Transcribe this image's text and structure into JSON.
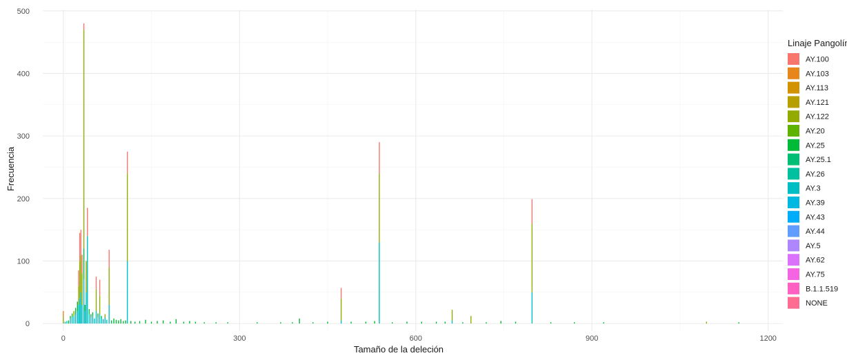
{
  "chart_data": {
    "type": "bar",
    "stacked": true,
    "xlabel": "Tamaño de la deleción",
    "ylabel": "Frecuencia",
    "xlim": [
      -35,
      1225
    ],
    "ylim": [
      -12,
      502
    ],
    "x_ticks": [
      0,
      300,
      600,
      900,
      1200
    ],
    "y_ticks": [
      0,
      100,
      200,
      300,
      400,
      500
    ],
    "grid": true,
    "legend_position": "right",
    "legend": {
      "title": "Linaje Pangolín",
      "entries": [
        {
          "name": "AY.100",
          "color": "#F8766D"
        },
        {
          "name": "AY.103",
          "color": "#E7861B"
        },
        {
          "name": "AY.113",
          "color": "#D39200"
        },
        {
          "name": "AY.121",
          "color": "#B79F00"
        },
        {
          "name": "AY.122",
          "color": "#93AA00"
        },
        {
          "name": "AY.20",
          "color": "#5EB300"
        },
        {
          "name": "AY.25",
          "color": "#00BA38"
        },
        {
          "name": "AY.25.1",
          "color": "#00BF74"
        },
        {
          "name": "AY.26",
          "color": "#00C19F"
        },
        {
          "name": "AY.3",
          "color": "#00BFC4"
        },
        {
          "name": "AY.39",
          "color": "#00B9E3"
        },
        {
          "name": "AY.43",
          "color": "#00ADFA"
        },
        {
          "name": "AY.44",
          "color": "#619CFF"
        },
        {
          "name": "AY.5",
          "color": "#AE87FF"
        },
        {
          "name": "AY.62",
          "color": "#DB72FB"
        },
        {
          "name": "AY.75",
          "color": "#F564E3"
        },
        {
          "name": "B.1.1.519",
          "color": "#FF61C3"
        },
        {
          "name": "NONE",
          "color": "#FF6C91"
        }
      ]
    },
    "bars": [
      {
        "x": 0,
        "segments": [
          {
            "lineage": "AY.122",
            "value": 10
          },
          {
            "lineage": "AY.103",
            "value": 10
          }
        ]
      },
      {
        "x": 3,
        "segments": [
          {
            "lineage": "AY.3",
            "value": 3
          }
        ]
      },
      {
        "x": 6,
        "segments": [
          {
            "lineage": "AY.3",
            "value": 4
          }
        ]
      },
      {
        "x": 9,
        "segments": [
          {
            "lineage": "AY.25",
            "value": 5
          }
        ]
      },
      {
        "x": 12,
        "segments": [
          {
            "lineage": "AY.3",
            "value": 8
          },
          {
            "lineage": "AY.25",
            "value": 4
          }
        ]
      },
      {
        "x": 15,
        "segments": [
          {
            "lineage": "AY.3",
            "value": 10
          },
          {
            "lineage": "AY.25",
            "value": 6
          }
        ]
      },
      {
        "x": 18,
        "segments": [
          {
            "lineage": "AY.3",
            "value": 12
          },
          {
            "lineage": "AY.122",
            "value": 8
          }
        ]
      },
      {
        "x": 21,
        "segments": [
          {
            "lineage": "AY.3",
            "value": 15
          },
          {
            "lineage": "AY.25",
            "value": 10
          }
        ]
      },
      {
        "x": 24,
        "segments": [
          {
            "lineage": "AY.3",
            "value": 20
          },
          {
            "lineage": "AY.25",
            "value": 15
          }
        ]
      },
      {
        "x": 26,
        "segments": [
          {
            "lineage": "AY.3",
            "value": 30
          },
          {
            "lineage": "AY.122",
            "value": 30
          },
          {
            "lineage": "AY.100",
            "value": 25
          }
        ]
      },
      {
        "x": 28,
        "segments": [
          {
            "lineage": "AY.3",
            "value": 40
          },
          {
            "lineage": "AY.122",
            "value": 60
          },
          {
            "lineage": "AY.100",
            "value": 45
          }
        ]
      },
      {
        "x": 30,
        "segments": [
          {
            "lineage": "AY.3",
            "value": 50
          },
          {
            "lineage": "AY.122",
            "value": 60
          },
          {
            "lineage": "AY.100",
            "value": 40
          }
        ]
      },
      {
        "x": 32,
        "segments": [
          {
            "lineage": "AY.3",
            "value": 30
          },
          {
            "lineage": "AY.122",
            "value": 50
          },
          {
            "lineage": "AY.100",
            "value": 30
          }
        ]
      },
      {
        "x": 35,
        "segments": [
          {
            "lineage": "AY.3",
            "value": 70
          },
          {
            "lineage": "AY.25",
            "value": 50
          },
          {
            "lineage": "AY.122",
            "value": 350
          },
          {
            "lineage": "AY.100",
            "value": 10
          }
        ]
      },
      {
        "x": 37,
        "segments": [
          {
            "lineage": "AY.3",
            "value": 20
          },
          {
            "lineage": "AY.25",
            "value": 10
          }
        ]
      },
      {
        "x": 39,
        "segments": [
          {
            "lineage": "AY.3",
            "value": 50
          },
          {
            "lineage": "AY.122",
            "value": 50
          }
        ]
      },
      {
        "x": 41,
        "segments": [
          {
            "lineage": "AY.3",
            "value": 140
          },
          {
            "lineage": "AY.100",
            "value": 45
          }
        ]
      },
      {
        "x": 44,
        "segments": [
          {
            "lineage": "AY.3",
            "value": 15
          },
          {
            "lineage": "AY.25",
            "value": 8
          }
        ]
      },
      {
        "x": 47,
        "segments": [
          {
            "lineage": "AY.3",
            "value": 10
          },
          {
            "lineage": "AY.25",
            "value": 5
          }
        ]
      },
      {
        "x": 50,
        "segments": [
          {
            "lineage": "AY.3",
            "value": 12
          },
          {
            "lineage": "AY.25",
            "value": 6
          }
        ]
      },
      {
        "x": 53,
        "segments": [
          {
            "lineage": "AY.3",
            "value": 8
          }
        ]
      },
      {
        "x": 56,
        "segments": [
          {
            "lineage": "AY.3",
            "value": 20
          },
          {
            "lineage": "AY.122",
            "value": 35
          },
          {
            "lineage": "AY.100",
            "value": 20
          }
        ]
      },
      {
        "x": 59,
        "segments": [
          {
            "lineage": "AY.3",
            "value": 10
          },
          {
            "lineage": "AY.25",
            "value": 6
          }
        ]
      },
      {
        "x": 62,
        "segments": [
          {
            "lineage": "AY.3",
            "value": 15
          },
          {
            "lineage": "AY.122",
            "value": 30
          },
          {
            "lineage": "AY.100",
            "value": 25
          }
        ]
      },
      {
        "x": 65,
        "segments": [
          {
            "lineage": "AY.3",
            "value": 8
          },
          {
            "lineage": "AY.25",
            "value": 4
          }
        ]
      },
      {
        "x": 68,
        "segments": [
          {
            "lineage": "AY.3",
            "value": 7
          }
        ]
      },
      {
        "x": 71,
        "segments": [
          {
            "lineage": "AY.3",
            "value": 10
          },
          {
            "lineage": "AY.122",
            "value": 5
          }
        ]
      },
      {
        "x": 74,
        "segments": [
          {
            "lineage": "AY.3",
            "value": 6
          }
        ]
      },
      {
        "x": 78,
        "segments": [
          {
            "lineage": "AY.3",
            "value": 30
          },
          {
            "lineage": "AY.122",
            "value": 60
          },
          {
            "lineage": "AY.100",
            "value": 28
          }
        ]
      },
      {
        "x": 82,
        "segments": [
          {
            "lineage": "AY.25",
            "value": 5
          }
        ]
      },
      {
        "x": 86,
        "segments": [
          {
            "lineage": "AY.25",
            "value": 8
          }
        ]
      },
      {
        "x": 90,
        "segments": [
          {
            "lineage": "AY.25",
            "value": 6
          }
        ]
      },
      {
        "x": 94,
        "segments": [
          {
            "lineage": "AY.25",
            "value": 5
          }
        ]
      },
      {
        "x": 98,
        "segments": [
          {
            "lineage": "AY.25",
            "value": 7
          }
        ]
      },
      {
        "x": 102,
        "segments": [
          {
            "lineage": "AY.25",
            "value": 4
          }
        ]
      },
      {
        "x": 106,
        "segments": [
          {
            "lineage": "AY.25",
            "value": 5
          }
        ]
      },
      {
        "x": 109,
        "segments": [
          {
            "lineage": "AY.3",
            "value": 100
          },
          {
            "lineage": "AY.122",
            "value": 140
          },
          {
            "lineage": "AY.100",
            "value": 35
          }
        ]
      },
      {
        "x": 115,
        "segments": [
          {
            "lineage": "AY.25",
            "value": 4
          }
        ]
      },
      {
        "x": 122,
        "segments": [
          {
            "lineage": "AY.25",
            "value": 3
          }
        ]
      },
      {
        "x": 130,
        "segments": [
          {
            "lineage": "AY.25",
            "value": 4
          }
        ]
      },
      {
        "x": 140,
        "segments": [
          {
            "lineage": "AY.25",
            "value": 6
          }
        ]
      },
      {
        "x": 150,
        "segments": [
          {
            "lineage": "AY.25",
            "value": 3
          }
        ]
      },
      {
        "x": 160,
        "segments": [
          {
            "lineage": "AY.25",
            "value": 4
          }
        ]
      },
      {
        "x": 170,
        "segments": [
          {
            "lineage": "AY.25",
            "value": 5
          }
        ]
      },
      {
        "x": 182,
        "segments": [
          {
            "lineage": "AY.25",
            "value": 3
          }
        ]
      },
      {
        "x": 192,
        "segments": [
          {
            "lineage": "AY.25",
            "value": 7
          }
        ]
      },
      {
        "x": 205,
        "segments": [
          {
            "lineage": "AY.25",
            "value": 3
          }
        ]
      },
      {
        "x": 215,
        "segments": [
          {
            "lineage": "AY.25",
            "value": 4
          }
        ]
      },
      {
        "x": 225,
        "segments": [
          {
            "lineage": "AY.25",
            "value": 3
          }
        ]
      },
      {
        "x": 240,
        "segments": [
          {
            "lineage": "AY.25",
            "value": 2
          }
        ]
      },
      {
        "x": 260,
        "segments": [
          {
            "lineage": "AY.25",
            "value": 2
          }
        ]
      },
      {
        "x": 280,
        "segments": [
          {
            "lineage": "AY.25",
            "value": 2
          }
        ]
      },
      {
        "x": 330,
        "segments": [
          {
            "lineage": "AY.25",
            "value": 2
          }
        ]
      },
      {
        "x": 370,
        "segments": [
          {
            "lineage": "AY.25",
            "value": 2
          }
        ]
      },
      {
        "x": 390,
        "segments": [
          {
            "lineage": "AY.25",
            "value": 2
          }
        ]
      },
      {
        "x": 402,
        "segments": [
          {
            "lineage": "AY.25",
            "value": 8
          }
        ]
      },
      {
        "x": 425,
        "segments": [
          {
            "lineage": "AY.25",
            "value": 2
          }
        ]
      },
      {
        "x": 450,
        "segments": [
          {
            "lineage": "AY.25",
            "value": 3
          }
        ]
      },
      {
        "x": 473,
        "segments": [
          {
            "lineage": "AY.3",
            "value": 5
          },
          {
            "lineage": "AY.122",
            "value": 35
          },
          {
            "lineage": "AY.100",
            "value": 17
          }
        ]
      },
      {
        "x": 490,
        "segments": [
          {
            "lineage": "AY.25",
            "value": 3
          }
        ]
      },
      {
        "x": 515,
        "segments": [
          {
            "lineage": "AY.25",
            "value": 3
          }
        ]
      },
      {
        "x": 530,
        "segments": [
          {
            "lineage": "AY.25",
            "value": 4
          }
        ]
      },
      {
        "x": 538,
        "segments": [
          {
            "lineage": "AY.3",
            "value": 130
          },
          {
            "lineage": "AY.122",
            "value": 110
          },
          {
            "lineage": "AY.100",
            "value": 50
          }
        ]
      },
      {
        "x": 560,
        "segments": [
          {
            "lineage": "AY.25",
            "value": 2
          }
        ]
      },
      {
        "x": 585,
        "segments": [
          {
            "lineage": "AY.25",
            "value": 3
          }
        ]
      },
      {
        "x": 610,
        "segments": [
          {
            "lineage": "AY.25",
            "value": 3
          }
        ]
      },
      {
        "x": 635,
        "segments": [
          {
            "lineage": "AY.25",
            "value": 3
          }
        ]
      },
      {
        "x": 650,
        "segments": [
          {
            "lineage": "AY.25",
            "value": 3
          }
        ]
      },
      {
        "x": 662,
        "segments": [
          {
            "lineage": "AY.3",
            "value": 5
          },
          {
            "lineage": "AY.122",
            "value": 17
          }
        ]
      },
      {
        "x": 680,
        "segments": [
          {
            "lineage": "AY.25",
            "value": 2
          }
        ]
      },
      {
        "x": 694,
        "segments": [
          {
            "lineage": "AY.122",
            "value": 12
          }
        ]
      },
      {
        "x": 720,
        "segments": [
          {
            "lineage": "AY.25",
            "value": 2
          }
        ]
      },
      {
        "x": 745,
        "segments": [
          {
            "lineage": "AY.25",
            "value": 4
          }
        ]
      },
      {
        "x": 770,
        "segments": [
          {
            "lineage": "AY.25",
            "value": 3
          }
        ]
      },
      {
        "x": 798,
        "segments": [
          {
            "lineage": "AY.3",
            "value": 50
          },
          {
            "lineage": "AY.122",
            "value": 110
          },
          {
            "lineage": "AY.100",
            "value": 39
          }
        ]
      },
      {
        "x": 830,
        "segments": [
          {
            "lineage": "AY.25",
            "value": 2
          }
        ]
      },
      {
        "x": 870,
        "segments": [
          {
            "lineage": "AY.25",
            "value": 2
          }
        ]
      },
      {
        "x": 920,
        "segments": [
          {
            "lineage": "AY.25",
            "value": 2
          }
        ]
      },
      {
        "x": 1095,
        "segments": [
          {
            "lineage": "AY.122",
            "value": 3
          }
        ]
      },
      {
        "x": 1150,
        "segments": [
          {
            "lineage": "AY.25",
            "value": 2
          }
        ]
      }
    ]
  }
}
